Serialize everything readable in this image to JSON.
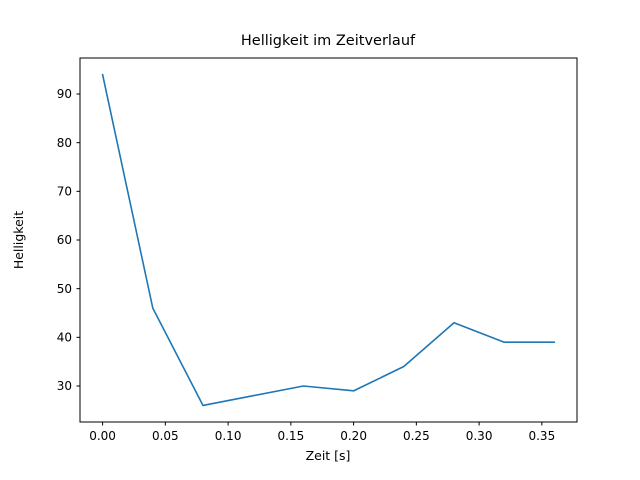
{
  "figure": {
    "background_color": "#ffffff",
    "axes_color": "#000000"
  },
  "chart_data": {
    "type": "line",
    "title": "Helligkeit im Zeitverlauf",
    "xlabel": "Zeit [s]",
    "ylabel": "Helligkeit",
    "x": [
      0.0,
      0.04,
      0.08,
      0.12,
      0.16,
      0.2,
      0.24,
      0.28,
      0.32,
      0.36
    ],
    "y": [
      94,
      46,
      26,
      28,
      30,
      29,
      34,
      43,
      39,
      39
    ],
    "line_color": "#1f77b4",
    "xlim": [
      -0.018,
      0.378
    ],
    "ylim": [
      22.6,
      97.4
    ],
    "xticks": [
      0.0,
      0.05,
      0.1,
      0.15,
      0.2,
      0.25,
      0.3,
      0.35
    ],
    "xtick_labels": [
      "0.00",
      "0.05",
      "0.10",
      "0.15",
      "0.20",
      "0.25",
      "0.30",
      "0.35"
    ],
    "yticks": [
      30,
      40,
      50,
      60,
      70,
      80,
      90
    ],
    "ytick_labels": [
      "30",
      "40",
      "50",
      "60",
      "70",
      "80",
      "90"
    ],
    "grid": false,
    "legend": "none"
  }
}
